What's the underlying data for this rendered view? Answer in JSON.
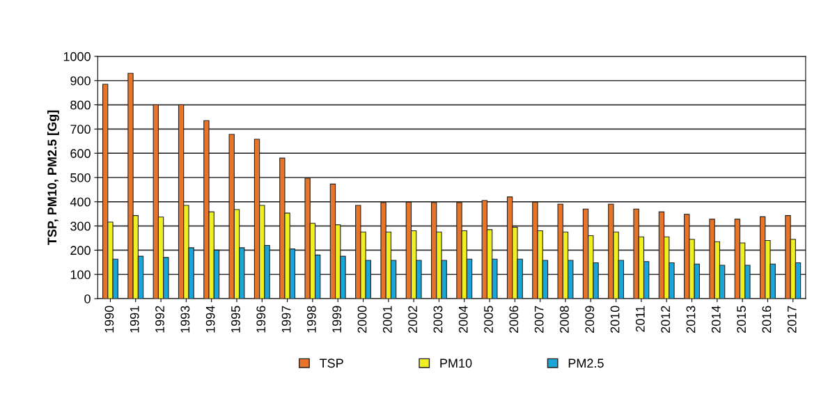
{
  "chart_data": {
    "type": "bar",
    "ylabel": "TSP, PM10, PM2.5 [Gg]",
    "categories": [
      "1990",
      "1991",
      "1992",
      "1993",
      "1994",
      "1995",
      "1996",
      "1997",
      "1998",
      "1999",
      "2000",
      "2001",
      "2002",
      "2003",
      "2004",
      "2005",
      "2006",
      "2007",
      "2008",
      "2009",
      "2010",
      "2011",
      "2012",
      "2013",
      "2014",
      "2015",
      "2016",
      "2017"
    ],
    "series": [
      {
        "name": "TSP",
        "color": "#e8742a",
        "values": [
          885,
          930,
          800,
          800,
          735,
          678,
          658,
          580,
          497,
          473,
          385,
          397,
          398,
          397,
          397,
          405,
          420,
          398,
          390,
          370,
          390,
          370,
          358,
          348,
          328,
          328,
          338,
          343
        ]
      },
      {
        "name": "PM10",
        "color": "#f0f020",
        "values": [
          316,
          343,
          337,
          385,
          358,
          368,
          385,
          353,
          311,
          305,
          275,
          275,
          280,
          275,
          280,
          285,
          295,
          280,
          275,
          260,
          275,
          255,
          255,
          245,
          235,
          230,
          240,
          245
        ]
      },
      {
        "name": "PM2.5",
        "color": "#1aa6d8",
        "values": [
          163,
          175,
          170,
          210,
          200,
          210,
          220,
          205,
          180,
          175,
          158,
          158,
          158,
          158,
          163,
          163,
          163,
          158,
          158,
          148,
          158,
          153,
          148,
          143,
          138,
          138,
          143,
          148
        ]
      }
    ],
    "ylim": [
      0,
      1000
    ],
    "yticks": [
      0,
      100,
      200,
      300,
      400,
      500,
      600,
      700,
      800,
      900,
      1000
    ],
    "grid": "y",
    "legend": "bottom"
  }
}
